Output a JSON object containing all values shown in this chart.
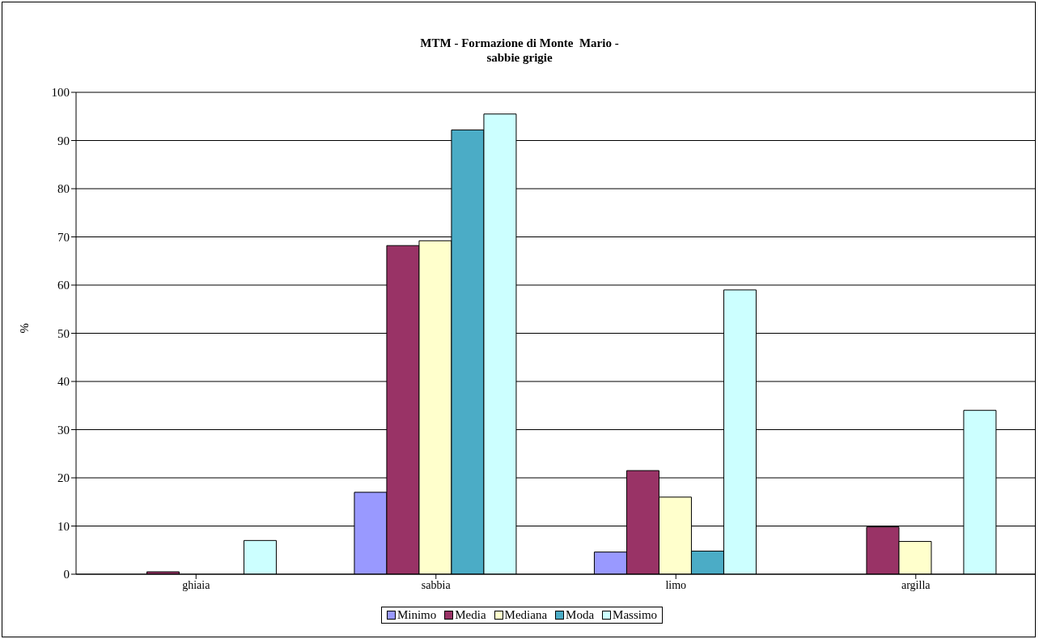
{
  "chart_data": {
    "type": "bar",
    "title": "MTM - Formazione di Monte  Mario -\nsabbie grigie",
    "ylabel": "%",
    "categories": [
      "ghiaia",
      "sabbia",
      "limo",
      "argilla"
    ],
    "series": [
      {
        "name": "Minimo",
        "color": "#9999ff",
        "values": [
          0,
          17,
          4.6,
          0
        ]
      },
      {
        "name": "Media",
        "color": "#993366",
        "values": [
          0.5,
          68.2,
          21.5,
          9.8
        ]
      },
      {
        "name": "Mediana",
        "color": "#ffffcc",
        "values": [
          0,
          69.2,
          16,
          6.8
        ]
      },
      {
        "name": "Moda",
        "color": "#4bacc6",
        "values": [
          0,
          92.2,
          4.8,
          0
        ]
      },
      {
        "name": "Massimo",
        "color": "#ccffff",
        "values": [
          7,
          95.5,
          59,
          34
        ]
      }
    ],
    "ylim": [
      0,
      100
    ],
    "yticks": [
      0,
      10,
      20,
      30,
      40,
      50,
      60,
      70,
      80,
      90,
      100
    ],
    "grid": "y",
    "legend": "bottom"
  }
}
